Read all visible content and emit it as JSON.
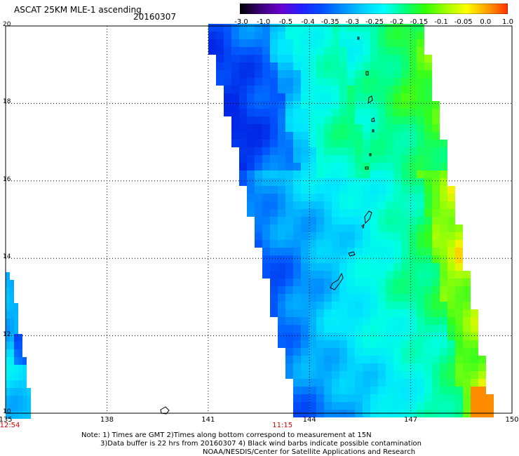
{
  "title": "ASCAT 25KM MLE-1 ascending",
  "date": "20160307",
  "colorbar": {
    "labels": [
      "-3.0",
      "-1.0",
      "-0.5",
      "-0.4",
      "-0.35",
      "-0.3",
      "-0.25",
      "-0.2",
      "-0.15",
      "-0.1",
      "-0.05",
      "0.0",
      "1.0"
    ],
    "colors": [
      "#000000",
      "#3a0078",
      "#6a00d0",
      "#2020ff",
      "#0050ff",
      "#0090ff",
      "#00d0ff",
      "#00ffff",
      "#00ff80",
      "#30ff00",
      "#a0ff00",
      "#ffff00",
      "#ffa000",
      "#ff3000"
    ]
  },
  "map": {
    "lat_labels": [
      "20",
      "18",
      "16",
      "14",
      "12",
      "10"
    ],
    "lon_labels": [
      "135",
      "138",
      "141",
      "144",
      "147",
      "150"
    ],
    "time_labels": [
      {
        "text": "12:54",
        "lon": 135.1
      },
      {
        "text": "11:15",
        "lon": 143.2
      }
    ]
  },
  "notes": {
    "line1": "Note: 1) Times are GMT 2)Times along bottom correspond to measurement at 15N",
    "line2": "3)Data buffer is 22 hrs from 20160307 4) Black wind barbs indicate possible contamination",
    "line3": "NOAA/NESDIS/Center for Satellite Applications and Research"
  }
}
